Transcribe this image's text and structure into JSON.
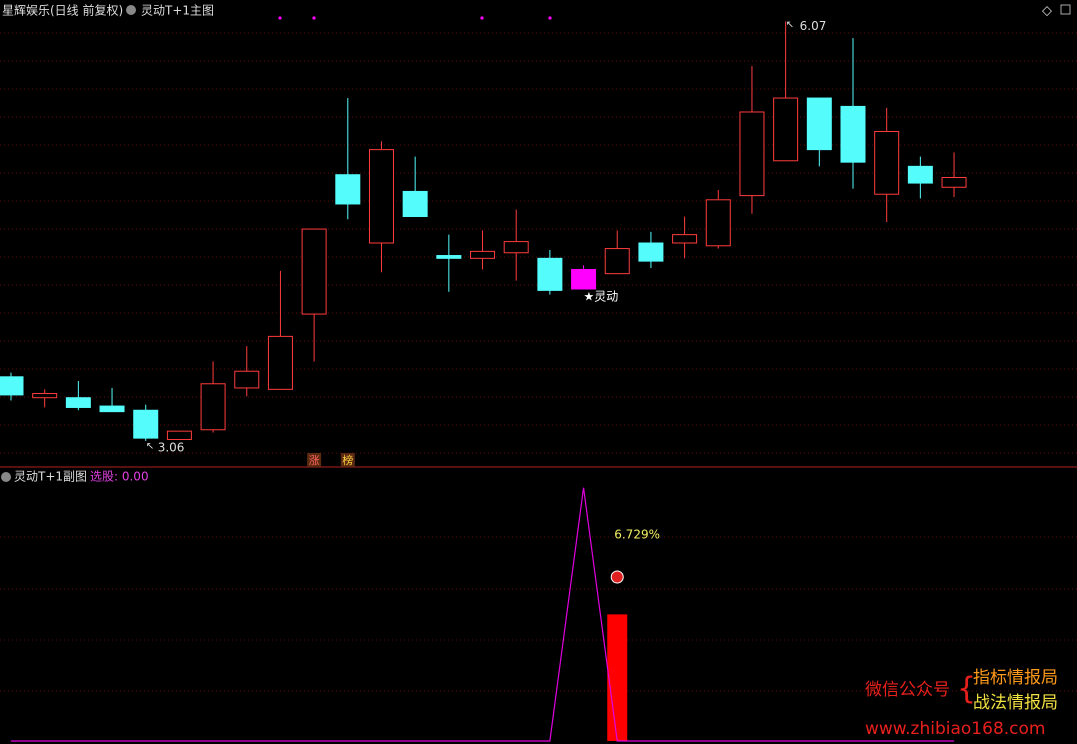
{
  "chart_data": [
    {
      "type": "candlestick",
      "subtitle": "星辉娱乐(日线 前复权)",
      "title": "灵动T+1主图",
      "categories": [
        null,
        null,
        null,
        null,
        null,
        null,
        null,
        null,
        null,
        null,
        null,
        null,
        null,
        null,
        null,
        null,
        null,
        null,
        null,
        null,
        null,
        null,
        null,
        null,
        null,
        null,
        null,
        null,
        null
      ],
      "open": [
        3.52,
        3.37,
        3.37,
        3.31,
        3.28,
        3.07,
        3.14,
        3.44,
        3.43,
        3.97,
        4.97,
        4.48,
        4.85,
        4.39,
        4.37,
        4.41,
        4.37,
        4.15,
        4.26,
        4.48,
        4.48,
        4.46,
        4.82,
        5.07,
        5.52,
        5.46,
        4.83,
        5.03,
        4.88
      ],
      "close": [
        3.39,
        3.4,
        3.3,
        3.27,
        3.08,
        3.13,
        3.47,
        3.56,
        3.81,
        4.58,
        4.76,
        5.15,
        4.67,
        4.37,
        4.42,
        4.49,
        4.14,
        4.29,
        4.44,
        4.35,
        4.54,
        4.79,
        5.42,
        5.52,
        5.15,
        5.06,
        5.28,
        4.91,
        4.95
      ],
      "high": [
        3.55,
        3.43,
        3.49,
        3.44,
        3.32,
        3.13,
        3.63,
        3.74,
        4.28,
        4.58,
        5.52,
        5.21,
        5.1,
        4.54,
        4.57,
        4.72,
        4.43,
        4.32,
        4.57,
        4.56,
        4.67,
        4.86,
        5.75,
        6.07,
        5.52,
        5.95,
        5.45,
        5.1,
        5.13
      ],
      "low": [
        3.35,
        3.3,
        3.28,
        3.27,
        3.06,
        3.07,
        3.12,
        3.38,
        3.43,
        3.63,
        4.65,
        4.27,
        4.67,
        4.13,
        4.29,
        4.21,
        4.11,
        4.15,
        4.26,
        4.3,
        4.37,
        4.44,
        4.69,
        5.07,
        5.03,
        4.87,
        4.63,
        4.8,
        4.81
      ],
      "colors": [
        "#54fcfc",
        "#ff3c3c",
        "#54fcfc",
        "#54fcfc",
        "#54fcfc",
        "#ff3c3c",
        "#ff3c3c",
        "#ff3c3c",
        "#ff3c3c",
        "#ff3c3c",
        "#54fcfc",
        "#ff3c3c",
        "#54fcfc",
        "#54fcfc",
        "#ff3c3c",
        "#ff3c3c",
        "#54fcfc",
        "#ff00ff",
        "#ff3c3c",
        "#54fcfc",
        "#ff3c3c",
        "#ff3c3c",
        "#ff3c3c",
        "#ff3c3c",
        "#54fcfc",
        "#54fcfc",
        "#ff3c3c",
        "#54fcfc",
        "#ff3c3c"
      ],
      "ylim": [
        2.88,
        6.08
      ],
      "annotations": [
        {
          "text": "★灵动",
          "x": 17
        },
        {
          "text": "涨",
          "x": 9
        },
        {
          "text": "榜",
          "x": 10
        }
      ]
    },
    {
      "type": "line",
      "title": "灵动T+1副图",
      "legend_text": "选股: 0.00",
      "series": [
        {
          "color": "#e000e0",
          "values": [
            0,
            0,
            0,
            0,
            0,
            0,
            0,
            0,
            0,
            0,
            0,
            0,
            0,
            0,
            0,
            0,
            0,
            1,
            0,
            0,
            0,
            0,
            0,
            0,
            0,
            0,
            0,
            0,
            0
          ]
        }
      ],
      "bars": {
        "color": "#ff0000",
        "values": [
          null,
          null,
          null,
          null,
          null,
          null,
          null,
          null,
          null,
          null,
          null,
          null,
          null,
          null,
          null,
          null,
          null,
          null,
          0.5,
          null,
          null,
          null,
          null,
          null,
          null,
          null,
          null,
          null,
          null
        ]
      },
      "ylim": [
        0,
        1.07
      ],
      "annotations": [
        {
          "text": "6.729%",
          "x": 18
        }
      ]
    }
  ],
  "watermark": {
    "label": "微信公众号",
    "line1": "指标情报局",
    "line2": "战法情报局",
    "url": "www.zhibiao168.com"
  }
}
